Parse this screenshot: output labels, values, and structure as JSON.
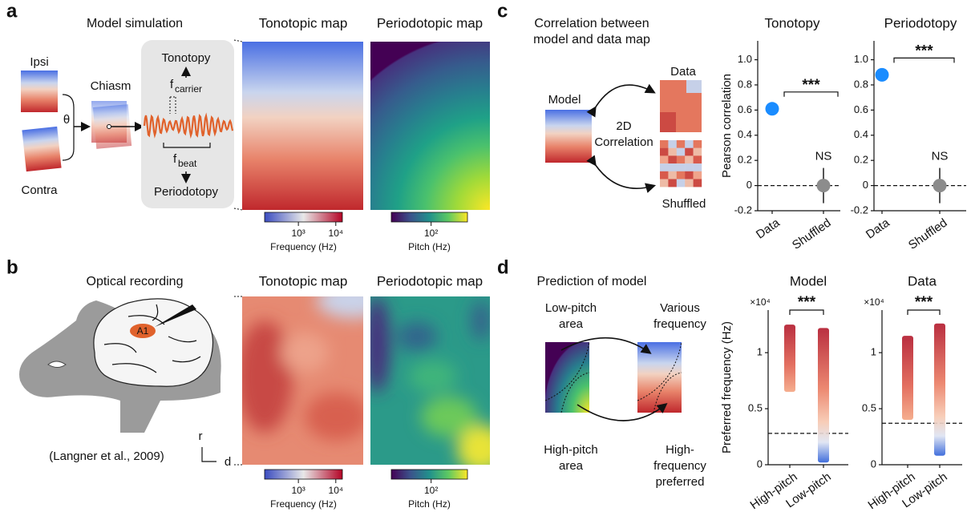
{
  "panels": {
    "a": {
      "label": "a",
      "title": "Model simulation",
      "ipsi": "Ipsi",
      "contra": "Contra",
      "chiasm": "Chiasm",
      "theta": "θ",
      "tonotopy": "Tonotopy",
      "f": "f",
      "carrier": "carrier",
      "beat": "beat",
      "periodotopy": "Periodotopy",
      "map_titles": [
        "Tonotopic map",
        "Periodotopic map"
      ]
    },
    "b": {
      "label": "b",
      "title": "Optical recording",
      "region": "A1",
      "citation": "(Langner et al., 2009)",
      "rostral": "r",
      "dorsal": "d",
      "map_titles": [
        "Tonotopic map",
        "Periodotopic map"
      ]
    },
    "c": {
      "label": "c",
      "title_lines": [
        "Correlation between",
        "model and data map"
      ],
      "model": "Model",
      "data": "Data",
      "method_lines": [
        "2D",
        "Correlation"
      ],
      "shuffled": "Shuffled"
    },
    "d": {
      "label": "d",
      "title": "Prediction of model",
      "low": [
        "Low-pitch",
        "area"
      ],
      "various": [
        "Various",
        "frequency"
      ],
      "high": [
        "High-pitch",
        "area"
      ],
      "high_freq": [
        "High-",
        "frequency",
        "preferred"
      ]
    }
  },
  "colorbars": {
    "frequency": {
      "label": "Frequency (Hz)",
      "lim": [
        125,
        15000
      ],
      "log": true,
      "ticks": [
        {
          "value": 1000,
          "label": "10³"
        },
        {
          "value": 10000,
          "label": "10⁴"
        }
      ]
    },
    "pitch": {
      "label": "Pitch (Hz)",
      "lim": [
        30,
        300
      ],
      "log": true,
      "ticks": [
        {
          "value": 100,
          "label": "10²"
        }
      ]
    }
  },
  "chart_data": [
    {
      "type": "dot",
      "title": "Tonotopy",
      "ylabel": "Pearson correlation",
      "categories": [
        "Data",
        "Shuffled"
      ],
      "values": [
        0.61,
        0
      ],
      "errors": [
        null,
        0.14
      ],
      "colors": [
        "#1a8cff",
        "#8c8c8c"
      ],
      "ylim": [
        -0.2,
        1.15
      ],
      "yticks": [
        -0.2,
        0,
        0.2,
        0.4,
        0.6,
        0.8,
        {
          "value": 1,
          "label": "1.0"
        }
      ],
      "reference": 0,
      "significance": "***",
      "ns_label": "NS"
    },
    {
      "type": "dot",
      "title": "Periodotopy",
      "categories": [
        "Data",
        "Shuffled"
      ],
      "values": [
        0.88,
        0
      ],
      "errors": [
        null,
        0.14
      ],
      "colors": [
        "#1a8cff",
        "#8c8c8c"
      ],
      "ylim": [
        -0.2,
        1.15
      ],
      "yticks": [
        -0.2,
        0,
        0.2,
        0.4,
        0.6,
        0.8,
        {
          "value": 1,
          "label": "1.0"
        }
      ],
      "reference": 0,
      "significance": "***",
      "ns_label": "NS"
    },
    {
      "type": "strip",
      "title": "Model",
      "ylabel": "Preferred frequency (Hz)",
      "scale_label": "×10⁴",
      "categories": [
        "High-pitch",
        "Low-pitch"
      ],
      "ranges": [
        [
          0.65,
          1.25
        ],
        [
          0.02,
          1.22
        ]
      ],
      "ylim": [
        0,
        1.38
      ],
      "yticks": [
        0,
        0.5,
        1
      ],
      "reference": 0.28,
      "significance": "***"
    },
    {
      "type": "strip",
      "title": "Data",
      "scale_label": "×10⁴",
      "categories": [
        "High-pitch",
        "Low-pitch"
      ],
      "ranges": [
        [
          0.4,
          1.15
        ],
        [
          0.08,
          1.26
        ]
      ],
      "ylim": [
        0,
        1.38
      ],
      "yticks": [
        0,
        0.5,
        1
      ],
      "reference": 0.37,
      "significance": "***"
    }
  ]
}
